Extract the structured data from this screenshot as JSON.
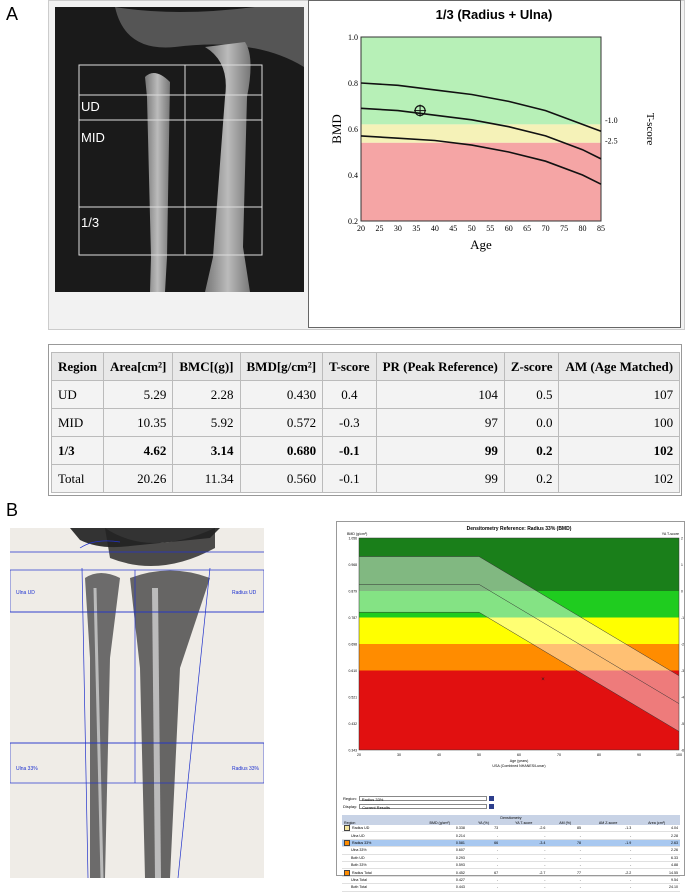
{
  "panel_a": {
    "letter": "A",
    "roi_labels": {
      "ud": "UD",
      "mid": "MID",
      "third": "1/3"
    },
    "chart_title": "1/3 (Radius + Ulna)",
    "y_label": "BMD",
    "x_label": "Age",
    "right_label": "T-score",
    "right_ticks": [
      "-1.0",
      "-2.5"
    ],
    "y_ticks": [
      "1.0",
      "0.8",
      "0.6",
      "0.4",
      "0.2"
    ],
    "x_ticks": [
      "20",
      "25",
      "30",
      "35",
      "40",
      "45",
      "50",
      "55",
      "60",
      "65",
      "70",
      "75",
      "80",
      "85"
    ],
    "colors": {
      "green": "#b7f0b7",
      "yellow": "#f5f2b8",
      "red": "#f5a5a5"
    },
    "table": {
      "headers": [
        "Region",
        "Area[cm²]",
        "BMC[(g)]",
        "BMD[g/cm²]",
        "T-score",
        "PR (Peak Reference)",
        "Z-score",
        "AM (Age Matched)"
      ],
      "rows": [
        {
          "cells": [
            "UD",
            "5.29",
            "2.28",
            "0.430",
            "0.4",
            "104",
            "0.5",
            "107"
          ],
          "bold": false
        },
        {
          "cells": [
            "MID",
            "10.35",
            "5.92",
            "0.572",
            "-0.3",
            "97",
            "0.0",
            "100"
          ],
          "bold": false
        },
        {
          "cells": [
            "1/3",
            "4.62",
            "3.14",
            "0.680",
            "-0.1",
            "99",
            "0.2",
            "102"
          ],
          "bold": true
        },
        {
          "cells": [
            "Total",
            "20.26",
            "11.34",
            "0.560",
            "-0.1",
            "99",
            "0.2",
            "102"
          ],
          "bold": false
        }
      ]
    }
  },
  "chart_data": [
    {
      "type": "line",
      "title": "1/3 (Radius + Ulna)",
      "xlabel": "Age",
      "ylabel": "BMD",
      "xlim": [
        20,
        85
      ],
      "ylim": [
        0.2,
        1.0
      ],
      "series": [
        {
          "x": [
            20,
            30,
            40,
            50,
            60,
            70,
            80,
            85
          ],
          "values": [
            0.8,
            0.79,
            0.77,
            0.75,
            0.72,
            0.68,
            0.62,
            0.59
          ]
        },
        {
          "x": [
            20,
            30,
            40,
            50,
            60,
            70,
            80,
            85
          ],
          "values": [
            0.69,
            0.68,
            0.66,
            0.64,
            0.61,
            0.57,
            0.51,
            0.47
          ]
        },
        {
          "x": [
            20,
            30,
            40,
            50,
            60,
            70,
            80,
            85
          ],
          "values": [
            0.57,
            0.56,
            0.55,
            0.53,
            0.5,
            0.46,
            0.4,
            0.36
          ]
        }
      ],
      "patient_point": {
        "x": 36,
        "y": 0.68
      },
      "bands": [
        {
          "from": 0.62,
          "to": 1.0,
          "color": "#b7f0b7"
        },
        {
          "from": 0.54,
          "to": 0.62,
          "color": "#f5f2b8"
        },
        {
          "from": 0.2,
          "to": 0.54,
          "color": "#f5a5a5"
        }
      ]
    },
    {
      "type": "area",
      "title": "Densitometry Reference: Radius 33% (BMD)",
      "ylabel": "BMD (g/cm²)",
      "right_label": "YA T-score",
      "xlabel": "Age (years)",
      "subtitle": "USA (Combined NHANES/Lunar)",
      "x_ticks": [
        "20",
        "30",
        "40",
        "50",
        "60",
        "70",
        "80",
        "90",
        "100"
      ],
      "y_ticks": [
        "1.056",
        "0.968",
        "0.879",
        "0.787",
        "0.698",
        "0.610",
        "0.521",
        "0.432",
        "0.343"
      ],
      "t_ticks": [
        "2",
        "1",
        "0",
        "-1",
        "-2",
        "-3",
        "-4",
        "-5",
        "-6"
      ],
      "xlim": [
        20,
        100
      ],
      "ylim": [
        0.343,
        1.056
      ],
      "bands": [
        {
          "from_t": -1,
          "to_t": 2,
          "color": "#1a7f1a"
        },
        {
          "from_t": -1,
          "to_t": 0,
          "color": "#1fcc1f"
        },
        {
          "from_t": -2,
          "to_t": -1,
          "color": "#ffff00"
        },
        {
          "from_t": -3,
          "to_t": -2,
          "color": "#ff8c00"
        },
        {
          "from_t": -6,
          "to_t": -3,
          "color": "#e11010"
        }
      ],
      "patient_point": {
        "x": 66,
        "y": 0.581
      }
    }
  ],
  "panel_b": {
    "letter": "B",
    "roi_labels": {
      "ulna_ud": "Ulna UD",
      "radius_ud": "Radius UD",
      "ulna_33": "Ulna 33%",
      "radius_33": "Radius 33%"
    },
    "region_label": "Region:",
    "region_value": "Radius 33%",
    "display_label": "Display:",
    "display_value": "Current Results",
    "table_group": "Densitometry",
    "headers": [
      "Region",
      "BMD (g/cm²)",
      "YA (%)",
      "YA T-score",
      "AM (%)",
      "AM Z-score",
      "Area (cm²)"
    ],
    "rows": [
      {
        "cells": [
          "Radius UD",
          "0.338",
          "73",
          "-2.6",
          "85",
          "-1.3",
          "4.04"
        ],
        "swatch": "#f5e6a0",
        "sel": false
      },
      {
        "cells": [
          "Ulna UD",
          "0.214",
          "-",
          "-",
          "-",
          "-",
          "2.28"
        ],
        "swatch": "",
        "sel": false
      },
      {
        "cells": [
          "Radius 33%",
          "0.581",
          "66",
          "-3.4",
          "78",
          "-1.9",
          "2.63"
        ],
        "swatch": "#ff8c00",
        "sel": true
      },
      {
        "cells": [
          "Ulna 33%",
          "0.607",
          "-",
          "-",
          "-",
          "-",
          "2.26"
        ],
        "swatch": "",
        "sel": false
      },
      {
        "cells": [
          "Both UD",
          "0.293",
          "-",
          "-",
          "-",
          "-",
          "6.33"
        ],
        "swatch": "",
        "sel": false
      },
      {
        "cells": [
          "Both 33%",
          "0.593",
          "-",
          "-",
          "-",
          "-",
          "4.88"
        ],
        "swatch": "",
        "sel": false
      },
      {
        "cells": [
          "Radius Total",
          "0.452",
          "67",
          "-2.7",
          "77",
          "-2.2",
          "14.55"
        ],
        "swatch": "#ff8c00",
        "sel": false
      },
      {
        "cells": [
          "Ulna Total",
          "0.427",
          "-",
          "-",
          "-",
          "-",
          "9.54"
        ],
        "swatch": "",
        "sel": false
      },
      {
        "cells": [
          "Both Total",
          "0.443",
          "-",
          "-",
          "-",
          "-",
          "24.10"
        ],
        "swatch": "",
        "sel": false
      }
    ]
  }
}
